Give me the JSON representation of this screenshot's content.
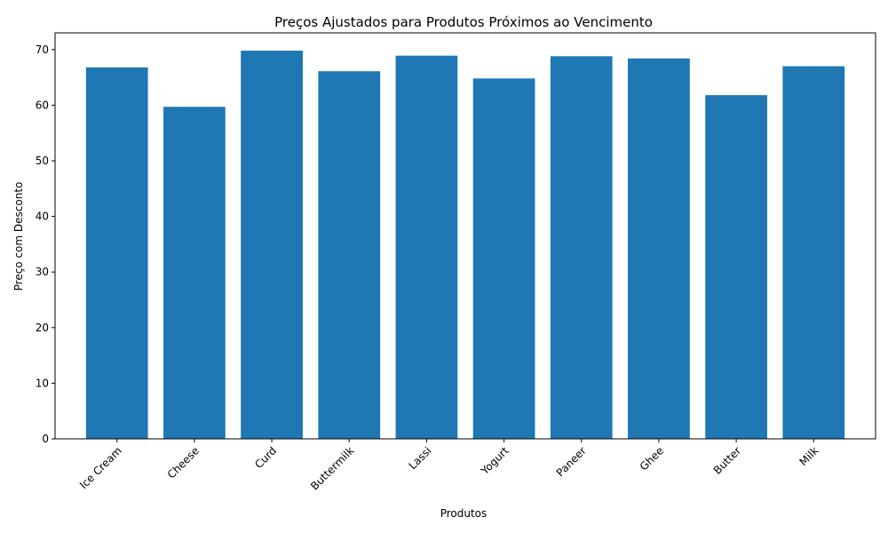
{
  "chart_data": {
    "type": "bar",
    "title": "Preços Ajustados para Produtos Próximos ao Vencimento",
    "xlabel": "Produtos",
    "ylabel": "Preço com Desconto",
    "categories": [
      "Ice Cream",
      "Cheese",
      "Curd",
      "Buttermilk",
      "Lassi",
      "Yogurt",
      "Paneer",
      "Ghee",
      "Butter",
      "Milk"
    ],
    "values": [
      66.8,
      59.7,
      69.8,
      66.1,
      68.9,
      64.8,
      68.8,
      68.4,
      61.8,
      67.0
    ],
    "ylim": [
      0,
      73
    ],
    "yticks": [
      0,
      10,
      20,
      30,
      40,
      50,
      60,
      70
    ],
    "bar_color": "#1f77b4",
    "grid": false,
    "legend": "none"
  }
}
